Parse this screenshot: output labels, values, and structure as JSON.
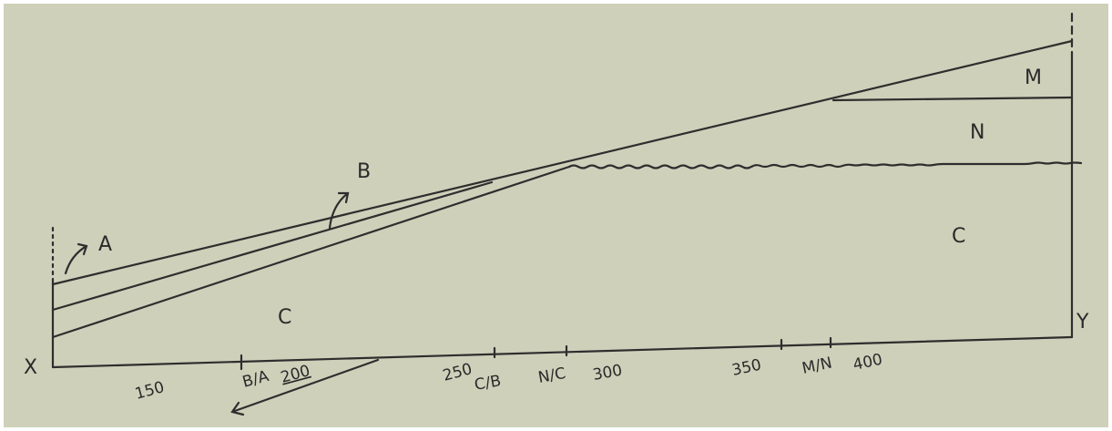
{
  "region_labels": [
    "A",
    "B",
    "C",
    "C",
    "M",
    "N"
  ],
  "axis_ends": [
    "X",
    "Y"
  ],
  "axis_ticks": [
    "150",
    "B/A",
    "200",
    "250",
    "C/B",
    "N/C",
    "300",
    "350",
    "M/N",
    "400"
  ]
}
